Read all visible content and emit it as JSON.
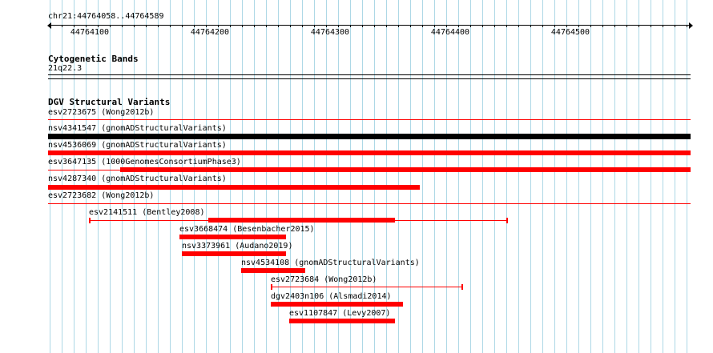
{
  "browser": {
    "coordinates": "chr21:44764058..44764589",
    "ruler_ticks": [
      "44764100",
      "44764200",
      "44764300",
      "44764400",
      "44764500"
    ]
  },
  "tracks": {
    "cytoband": {
      "title": "Cytogenetic Bands",
      "band": "21q22.3"
    },
    "dgv": {
      "title": "DGV Structural Variants",
      "rows": [
        {
          "label": "esv2723675 (Wong2012b)"
        },
        {
          "label": "nsv4341547 (gnomADStructuralVariants)"
        },
        {
          "label": "nsv4536069 (gnomADStructuralVariants)"
        },
        {
          "label": "esv3647135 (1000GenomesConsortiumPhase3)"
        },
        {
          "label": "nsv4287340 (gnomADStructuralVariants)"
        },
        {
          "label": "esv2723682 (Wong2012b)"
        }
      ],
      "features": [
        {
          "label": "esv2141511 (Bentley2008)"
        },
        {
          "label": "esv3668474 (Besenbacher2015)"
        },
        {
          "label": "nsv3373961 (Audano2019)"
        },
        {
          "label": "nsv4534108 (gnomADStructuralVariants)"
        },
        {
          "label": "esv2723684 (Wong2012b)"
        },
        {
          "label": "dgv2403n106 (Alsmadi2014)"
        },
        {
          "label": "esv1107847 (Levy2007)"
        }
      ]
    }
  },
  "colors": {
    "variant": "#ff0000",
    "variant_black": "#000000",
    "grid": "#add8e6"
  }
}
